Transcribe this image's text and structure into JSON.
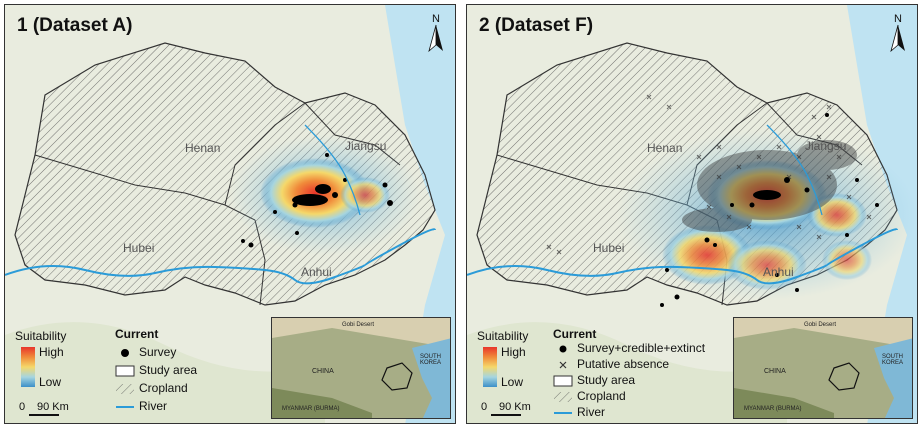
{
  "panels": [
    {
      "title": "1 (Dataset A)",
      "north": "N",
      "provinces": {
        "henan": "Henan",
        "jiangsu": "Jiangsu",
        "hubei": "Hubei",
        "anhui": "Anhui"
      },
      "legend": {
        "suitability_title": "Suitability",
        "high": "High",
        "low": "Low",
        "scale_zero": "0",
        "scale_label": "90 Km",
        "current_title": "Current",
        "items": [
          "Survey",
          "Study area",
          "Cropland",
          "River"
        ]
      },
      "inset": {
        "gobi": "Gobi Desert",
        "china": "CHINA",
        "south_korea": "SOUTH KOREA",
        "myanmar": "MYANMAR (BURMA)"
      }
    },
    {
      "title": "2 (Dataset F)",
      "north": "N",
      "provinces": {
        "henan": "Henan",
        "jiangsu": "Jiangsu",
        "hubei": "Hubei",
        "anhui": "Anhui"
      },
      "legend": {
        "suitability_title": "Suitability",
        "high": "High",
        "low": "Low",
        "scale_zero": "0",
        "scale_label": "90 Km",
        "current_title": "Current",
        "items": [
          "Survey+credible+extinct",
          "Putative absence",
          "Study area",
          "Cropland",
          "River"
        ]
      },
      "inset": {
        "gobi": "Gobi Desert",
        "china": "CHINA",
        "south_korea": "SOUTH KOREA",
        "myanmar": "MYANMAR (BURMA)"
      }
    }
  ],
  "colors": {
    "high": "#e8352b",
    "mid": "#f5d86a",
    "low": "#3c8fc8",
    "river": "#2b9bd8",
    "sea": "#bfe3f2"
  }
}
